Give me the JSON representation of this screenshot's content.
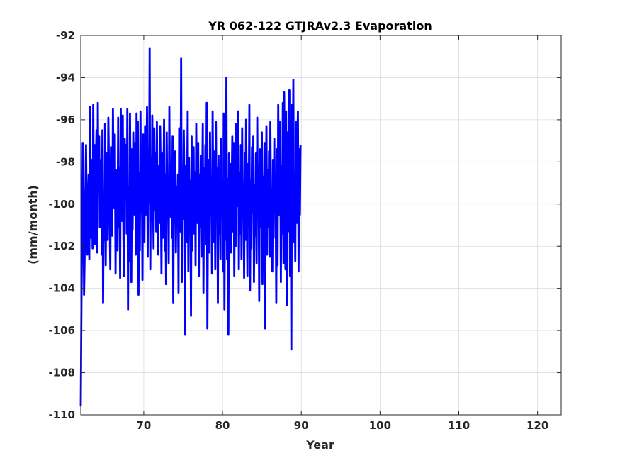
{
  "chart_data": {
    "type": "line",
    "title": "YR 062-122 GTJRAv2.3 Evaporation",
    "xlabel": "Year",
    "ylabel": "(mm/month)",
    "xlim": [
      62,
      123
    ],
    "ylim": [
      -110,
      -92
    ],
    "xticks": [
      70,
      80,
      90,
      100,
      110,
      120
    ],
    "yticks": [
      -110,
      -108,
      -106,
      -104,
      -102,
      -100,
      -98,
      -96,
      -94,
      -92
    ],
    "grid": true,
    "series": [
      {
        "color": "#0000ff",
        "x_start": 62.0,
        "x_step": 0.0833,
        "values": [
          -109.6,
          -104.9,
          -101.5,
          -97.1,
          -99.3,
          -104.3,
          -102.3,
          -99.6,
          -97.2,
          -100.3,
          -102.4,
          -99.8,
          -98.6,
          -102.6,
          -95.4,
          -101.6,
          -97.9,
          -99.2,
          -102.1,
          -95.3,
          -100.2,
          -97.2,
          -101.9,
          -98.1,
          -96.5,
          -102.3,
          -95.2,
          -99.5,
          -96.8,
          -101.1,
          -99.1,
          -97.9,
          -102.4,
          -96.5,
          -104.7,
          -99.4,
          -101.7,
          -96.2,
          -102.9,
          -98.7,
          -97.6,
          -101.7,
          -95.9,
          -98.1,
          -100.6,
          -103.1,
          -97.3,
          -99.6,
          -101.5,
          -95.5,
          -98.8,
          -100.2,
          -96.7,
          -103.3,
          -99.1,
          -98.4,
          -102.2,
          -95.9,
          -101.1,
          -98.3,
          -103.5,
          -95.5,
          -99.7,
          -100.8,
          -95.8,
          -101.6,
          -103.4,
          -96.9,
          -98.4,
          -97.2,
          -101.4,
          -95.5,
          -105.0,
          -99.2,
          -102.7,
          -95.7,
          -99.9,
          -103.7,
          -97.4,
          -101.2,
          -96.6,
          -99.1,
          -100.5,
          -97.1,
          -102.4,
          -95.7,
          -99.9,
          -96.1,
          -104.3,
          -98.5,
          -102.2,
          -95.6,
          -100.4,
          -97.8,
          -103.6,
          -96.7,
          -99.2,
          -101.8,
          -96.3,
          -100.5,
          -98.4,
          -95.4,
          -102.5,
          -97.5,
          -99.9,
          -92.6,
          -103.1,
          -97.8,
          -100.8,
          -95.8,
          -99.5,
          -102.1,
          -96.4,
          -100.3,
          -97.6,
          -101.3,
          -96.1,
          -99.9,
          -102.4,
          -98.2,
          -100.9,
          -96.3,
          -99.2,
          -103.3,
          -97.6,
          -101.6,
          -99.3,
          -96.0,
          -102.2,
          -98.6,
          -103.8,
          -96.6,
          -100.5,
          -98.9,
          -102.8,
          -95.4,
          -99.7,
          -100.6,
          -98.1,
          -101.6,
          -96.8,
          -104.7,
          -98.6,
          -100.9,
          -97.5,
          -102.3,
          -99.2,
          -100.2,
          -98.6,
          -104.2,
          -96.4,
          -99.2,
          -101.3,
          -93.1,
          -103.7,
          -98.3,
          -100.7,
          -96.5,
          -99.2,
          -106.2,
          -98.2,
          -101.8,
          -99.4,
          -95.6,
          -103.2,
          -97.8,
          -100.6,
          -98.9,
          -105.3,
          -96.8,
          -102.2,
          -99.1,
          -97.3,
          -101.4,
          -98.5,
          -102.9,
          -96.2,
          -99.8,
          -100.9,
          -97.1,
          -103.4,
          -98.6,
          -101.1,
          -97.7,
          -102.5,
          -99.5,
          -96.2,
          -104.2,
          -98.3,
          -100.7,
          -97.2,
          -101.9,
          -95.2,
          -105.9,
          -99.6,
          -97.9,
          -102.3,
          -96.6,
          -100.4,
          -98.8,
          -103.3,
          -95.6,
          -99.9,
          -101.8,
          -97.5,
          -103.1,
          -96.1,
          -100.2,
          -98.3,
          -104.7,
          -97.7,
          -101.4,
          -99.1,
          -102.6,
          -96.9,
          -100.6,
          -98.9,
          -103.2,
          -95.7,
          -105.0,
          -98.3,
          -101.7,
          -94.0,
          -102.6,
          -98.8,
          -106.2,
          -97.6,
          -100.7,
          -98.1,
          -102.3,
          -99.4,
          -96.8,
          -101.3,
          -97.1,
          -103.4,
          -98.7,
          -102.0,
          -96.2,
          -100.1,
          -99.2,
          -95.6,
          -103.1,
          -98.5,
          -101.4,
          -97.2,
          -102.6,
          -96.4,
          -100.3,
          -99.0,
          -103.5,
          -97.6,
          -101.7,
          -96.0,
          -99.3,
          -103.4,
          -98.1,
          -100.8,
          -95.3,
          -104.1,
          -98.9,
          -102.1,
          -97.3,
          -100.4,
          -96.8,
          -103.7,
          -99.1,
          -101.5,
          -97.6,
          -102.8,
          -95.9,
          -100.6,
          -98.2,
          -104.6,
          -97.4,
          -101.1,
          -99.6,
          -96.6,
          -103.8,
          -98.7,
          -101.9,
          -97.1,
          -105.9,
          -99.7,
          -96.3,
          -102.4,
          -98.4,
          -101.1,
          -97.5,
          -102.5,
          -96.1,
          -100.8,
          -99.3,
          -103.2,
          -97.9,
          -101.6,
          -96.9,
          -100.3,
          -98.7,
          -104.7,
          -97.4,
          -102.9,
          -95.3,
          -100.5,
          -99.1,
          -96.1,
          -103.7,
          -98.2,
          -101.4,
          -95.2,
          -102.8,
          -94.7,
          -99.8,
          -103.1,
          -95.6,
          -104.8,
          -96.6,
          -101.3,
          -98.1,
          -94.6,
          -103.4,
          -97.8,
          -106.9,
          -95.3,
          -100.4,
          -94.1,
          -101.8,
          -98.9,
          -102.7,
          -96.1,
          -100.9,
          -98.5,
          -95.6,
          -103.2,
          -97.4,
          -100.5,
          -97.2
        ]
      }
    ]
  }
}
